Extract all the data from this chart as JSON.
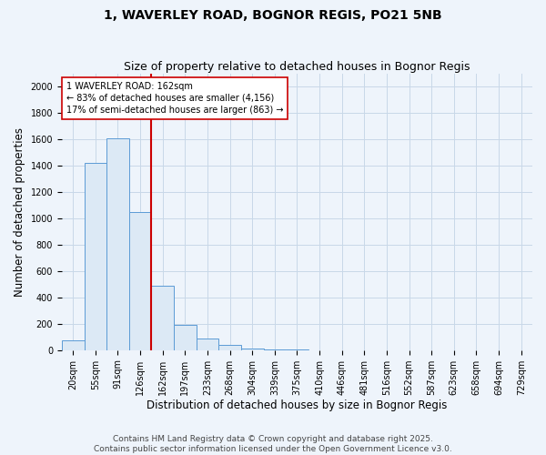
{
  "title1": "1, WAVERLEY ROAD, BOGNOR REGIS, PO21 5NB",
  "title2": "Size of property relative to detached houses in Bognor Regis",
  "xlabel": "Distribution of detached houses by size in Bognor Regis",
  "ylabel": "Number of detached properties",
  "categories": [
    "20sqm",
    "55sqm",
    "91sqm",
    "126sqm",
    "162sqm",
    "197sqm",
    "233sqm",
    "268sqm",
    "304sqm",
    "339sqm",
    "375sqm",
    "410sqm",
    "446sqm",
    "481sqm",
    "516sqm",
    "552sqm",
    "587sqm",
    "623sqm",
    "658sqm",
    "694sqm",
    "729sqm"
  ],
  "values": [
    75,
    1420,
    1610,
    1050,
    490,
    190,
    90,
    40,
    15,
    5,
    2,
    0,
    0,
    0,
    0,
    0,
    0,
    0,
    0,
    0,
    0
  ],
  "bar_color_face": "#dce9f5",
  "bar_color_edge": "#5b9bd5",
  "vline_x_index": 3.5,
  "vline_color": "#cc0000",
  "annotation_text": "1 WAVERLEY ROAD: 162sqm\n← 83% of detached houses are smaller (4,156)\n17% of semi-detached houses are larger (863) →",
  "annotation_box_color": "#ffffff",
  "annotation_box_edge": "#cc0000",
  "ylim": [
    0,
    2100
  ],
  "yticks": [
    0,
    200,
    400,
    600,
    800,
    1000,
    1200,
    1400,
    1600,
    1800,
    2000
  ],
  "grid_color": "#c8d8e8",
  "bg_color": "#eef4fb",
  "footer1": "Contains HM Land Registry data © Crown copyright and database right 2025.",
  "footer2": "Contains public sector information licensed under the Open Government Licence v3.0.",
  "title_fontsize": 10,
  "subtitle_fontsize": 9,
  "axis_label_fontsize": 8.5,
  "tick_fontsize": 7,
  "footer_fontsize": 6.5
}
